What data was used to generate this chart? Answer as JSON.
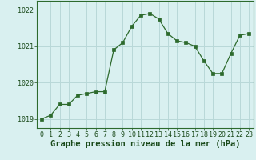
{
  "x": [
    0,
    1,
    2,
    3,
    4,
    5,
    6,
    7,
    8,
    9,
    10,
    11,
    12,
    13,
    14,
    15,
    16,
    17,
    18,
    19,
    20,
    21,
    22,
    23
  ],
  "y": [
    1019.0,
    1019.1,
    1019.4,
    1019.4,
    1019.65,
    1019.7,
    1019.75,
    1019.75,
    1020.9,
    1021.1,
    1021.55,
    1021.85,
    1021.9,
    1021.75,
    1021.35,
    1021.15,
    1021.1,
    1021.0,
    1020.6,
    1020.25,
    1020.25,
    1020.8,
    1021.3,
    1021.35
  ],
  "line_color": "#2d6a2d",
  "marker_color": "#2d6a2d",
  "bg_color": "#d9f0f0",
  "grid_color": "#b8d8d8",
  "xlabel": "Graphe pression niveau de la mer (hPa)",
  "xlabel_color": "#1a4a1a",
  "xlabel_fontsize": 7.5,
  "tick_color": "#1a4a1a",
  "tick_fontsize": 6.0,
  "ylim_min": 1018.75,
  "ylim_max": 1022.25,
  "yticks": [
    1019,
    1020,
    1021,
    1022
  ],
  "xticks": [
    0,
    1,
    2,
    3,
    4,
    5,
    6,
    7,
    8,
    9,
    10,
    11,
    12,
    13,
    14,
    15,
    16,
    17,
    18,
    19,
    20,
    21,
    22,
    23
  ]
}
